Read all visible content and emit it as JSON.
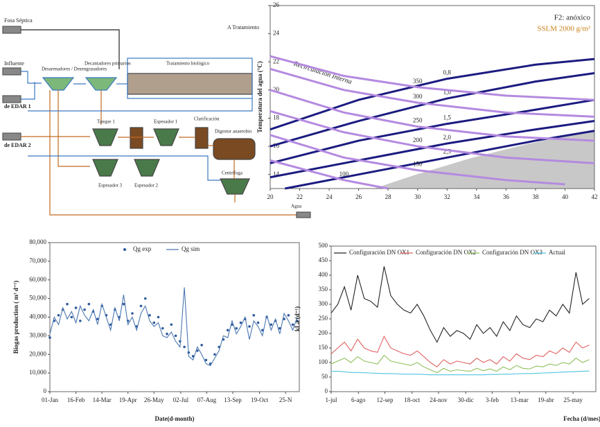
{
  "diagram": {
    "labels": [
      "Fosa Séptica",
      "A Tratamiento",
      "Influente",
      "de EDAR 1",
      "de EDAR 2",
      "Desarenadores / Desengrasadores",
      "Decantadores primarios",
      "Tratamiento biológico",
      "Clarificación",
      "Tanque 1",
      "Espesador 1",
      "Espesador 2",
      "Espesador 3",
      "Digestor anaerobio",
      "Centrífuga",
      "Agua"
    ]
  },
  "chart_data": [
    {
      "type": "contour",
      "title": "F2: anóxico",
      "subtitle": "SSLM 2000 g/m²",
      "y_label": "Temperatura del agua (°C)",
      "annotation": "Recirculación Interna",
      "xlim": [
        20,
        42
      ],
      "xticks": [
        20,
        22,
        24,
        26,
        28,
        30,
        32,
        34,
        36,
        38,
        40,
        42
      ],
      "ylim": [
        13,
        26
      ],
      "yticks": [
        14,
        16,
        18,
        20,
        22,
        24,
        26
      ],
      "series": [
        {
          "name": "0,8",
          "color": "#1b1b80",
          "x": [
            20,
            26,
            32,
            38,
            42
          ],
          "values": [
            17.2,
            19.3,
            20.8,
            21.8,
            22.2
          ]
        },
        {
          "name": "1,0",
          "color": "#1b1b80",
          "x": [
            20,
            26,
            32,
            38,
            42
          ],
          "values": [
            16,
            17.8,
            19.4,
            20.6,
            21.2
          ]
        },
        {
          "name": "1,5",
          "color": "#1b1b80",
          "x": [
            20,
            26,
            32,
            38,
            42
          ],
          "values": [
            14.8,
            16.4,
            17.6,
            18.6,
            19.3
          ]
        },
        {
          "name": "2,0",
          "color": "#1b1b80",
          "x": [
            20,
            26,
            32,
            38,
            42
          ],
          "values": [
            13.8,
            15,
            16.2,
            17.2,
            17.8
          ]
        },
        {
          "name": "2,5",
          "color": "#1b1b80",
          "x": [
            21,
            26,
            32,
            38,
            42
          ],
          "values": [
            13,
            14,
            15.2,
            16.4,
            17.1
          ]
        },
        {
          "name": "350",
          "color": "#b48ae0",
          "x": [
            20,
            25,
            30,
            36,
            42
          ],
          "values": [
            22.4,
            21,
            20.2,
            19.6,
            19.3
          ]
        },
        {
          "name": "300",
          "color": "#b48ae0",
          "x": [
            20,
            25,
            30,
            36,
            42
          ],
          "values": [
            21.5,
            20,
            19.1,
            18.4,
            18.1
          ]
        },
        {
          "name": "250",
          "color": "#b48ae0",
          "x": [
            20,
            25,
            30,
            36,
            42
          ],
          "values": [
            20,
            18.4,
            17.4,
            16.7,
            16.4
          ]
        },
        {
          "name": "200",
          "color": "#b48ae0",
          "x": [
            20,
            25,
            30,
            36,
            42
          ],
          "values": [
            18.5,
            17,
            16,
            15.2,
            14.8
          ]
        },
        {
          "name": "150",
          "color": "#b48ae0",
          "x": [
            20,
            25,
            30,
            36,
            40
          ],
          "values": [
            16.8,
            15.2,
            14.3,
            13.6,
            13.3
          ]
        },
        {
          "name": "100",
          "color": "#b48ae0",
          "x": [
            20,
            25,
            28
          ],
          "values": [
            15,
            13.6,
            13
          ]
        }
      ]
    },
    {
      "type": "line",
      "x_label": "Date(d-month)",
      "y_label": "Biogas production ( m³ d⁻¹)",
      "xlim": [
        0,
        345
      ],
      "xticks": [
        {
          "value": 0,
          "label": "01-Jan"
        },
        {
          "value": 36,
          "label": "16-Feb"
        },
        {
          "value": 72,
          "label": "14-Mar"
        },
        {
          "value": 108,
          "label": "19-Apr"
        },
        {
          "value": 144,
          "label": "26-May"
        },
        {
          "value": 181,
          "label": "02-Jul"
        },
        {
          "value": 217,
          "label": "07-Aug"
        },
        {
          "value": 253,
          "label": "13-Sep"
        },
        {
          "value": 290,
          "label": "19-Oct"
        },
        {
          "value": 326,
          "label": "25-N"
        }
      ],
      "ylim": [
        0,
        80000
      ],
      "yticks": [
        0,
        {
          "value": 10000,
          "label": "10,000"
        },
        {
          "value": 20000,
          "label": "20,000"
        },
        {
          "value": 30000,
          "label": "30,000"
        },
        {
          "value": 40000,
          "label": "40,000"
        },
        {
          "value": 50000,
          "label": "50,000"
        },
        {
          "value": 60000,
          "label": "60,000"
        },
        {
          "value": 70000,
          "label": "70,000"
        },
        {
          "value": 80000,
          "label": "80,000"
        }
      ],
      "x": [
        0,
        6,
        12,
        18,
        24,
        30,
        36,
        42,
        48,
        54,
        60,
        66,
        72,
        78,
        84,
        90,
        96,
        102,
        108,
        114,
        120,
        126,
        132,
        138,
        144,
        150,
        156,
        162,
        168,
        174,
        180,
        186,
        192,
        198,
        204,
        210,
        216,
        222,
        228,
        234,
        240,
        246,
        252,
        258,
        264,
        270,
        276,
        282,
        288,
        294,
        300,
        306,
        312,
        318,
        324,
        330,
        336,
        342
      ],
      "series": [
        {
          "name": "Qg exp",
          "color": "#2e5a9c",
          "mode": "markers",
          "values": [
            29000,
            38000,
            41000,
            44000,
            47000,
            40000,
            45000,
            38000,
            44000,
            47000,
            43000,
            39000,
            46000,
            41000,
            36000,
            44000,
            40000,
            47000,
            38000,
            42000,
            35000,
            46000,
            50000,
            41000,
            37000,
            40000,
            34000,
            31000,
            36000,
            30000,
            27000,
            24000,
            21000,
            19000,
            22000,
            25000,
            17000,
            15000,
            20000,
            24000,
            28000,
            33000,
            36000,
            34000,
            37000,
            39000,
            35000,
            41000,
            37000,
            33000,
            40000,
            36000,
            38000,
            34000,
            39000,
            41000,
            36000,
            38000
          ]
        },
        {
          "name": "Qg sim",
          "color": "#4a76b0",
          "mode": "line",
          "values": [
            31000,
            40000,
            36000,
            45000,
            39000,
            43000,
            37000,
            46000,
            41000,
            38000,
            44000,
            36000,
            47000,
            40000,
            33000,
            45000,
            38000,
            52000,
            36000,
            40000,
            33000,
            42000,
            46000,
            38000,
            35000,
            37000,
            30000,
            29000,
            32000,
            27000,
            24000,
            56000,
            19000,
            17000,
            24000,
            20000,
            15000,
            14000,
            18000,
            22000,
            30000,
            29000,
            38000,
            31000,
            35000,
            40000,
            28000,
            38000,
            35000,
            30000,
            41000,
            33000,
            39000,
            31000,
            42000,
            38000,
            33000,
            40000
          ]
        }
      ]
    },
    {
      "type": "line",
      "x_label": "Fecha (d/mes)",
      "y_label": "kLa (d⁻¹)",
      "xlim": [
        0,
        360
      ],
      "xticks": [
        {
          "value": 0,
          "label": "1-jul"
        },
        {
          "value": 37,
          "label": "6-ago"
        },
        {
          "value": 73,
          "label": "12-sep"
        },
        {
          "value": 110,
          "label": "18-oct"
        },
        {
          "value": 146,
          "label": "24-nov"
        },
        {
          "value": 183,
          "label": "30-dic"
        },
        {
          "value": 219,
          "label": "3-feb"
        },
        {
          "value": 256,
          "label": "13-mar"
        },
        {
          "value": 292,
          "label": "19-abr"
        },
        {
          "value": 329,
          "label": "25-may"
        }
      ],
      "ylim": [
        0,
        500
      ],
      "yticks": [
        0,
        50,
        100,
        150,
        200,
        250,
        300,
        350,
        400,
        450,
        500
      ],
      "x": [
        0,
        9,
        18,
        27,
        36,
        45,
        54,
        63,
        72,
        81,
        90,
        99,
        108,
        117,
        126,
        135,
        144,
        153,
        162,
        171,
        180,
        189,
        198,
        207,
        216,
        225,
        234,
        243,
        252,
        261,
        270,
        279,
        288,
        297,
        306,
        315,
        324,
        333,
        342,
        351
      ],
      "series": [
        {
          "name": "Configuración DN OX1",
          "color": "#222222",
          "mode": "line",
          "values": [
            270,
            300,
            360,
            280,
            400,
            320,
            310,
            290,
            430,
            330,
            300,
            280,
            270,
            300,
            260,
            210,
            170,
            220,
            190,
            210,
            200,
            180,
            230,
            200,
            220,
            190,
            240,
            210,
            260,
            230,
            220,
            250,
            240,
            280,
            260,
            300,
            270,
            410,
            300,
            320
          ]
        },
        {
          "name": "Configuración DN OX2",
          "color": "#e06060",
          "mode": "line",
          "values": [
            130,
            150,
            170,
            140,
            180,
            150,
            140,
            135,
            190,
            150,
            140,
            130,
            125,
            140,
            120,
            100,
            85,
            110,
            95,
            105,
            100,
            95,
            115,
            100,
            110,
            95,
            120,
            105,
            130,
            115,
            110,
            125,
            120,
            140,
            130,
            150,
            135,
            170,
            150,
            160
          ]
        },
        {
          "name": "Configuración DN OX3",
          "color": "#8fbf5a",
          "mode": "line",
          "values": [
            95,
            105,
            115,
            100,
            120,
            105,
            100,
            95,
            125,
            105,
            100,
            95,
            90,
            100,
            85,
            75,
            65,
            80,
            70,
            75,
            72,
            70,
            80,
            72,
            78,
            70,
            85,
            75,
            90,
            80,
            78,
            88,
            85,
            95,
            90,
            100,
            95,
            115,
            100,
            110
          ]
        },
        {
          "name": "Actual",
          "color": "#4fc3e0",
          "mode": "line",
          "values": [
            70,
            70,
            68,
            66,
            66,
            65,
            64,
            63,
            62,
            62,
            61,
            60,
            60,
            60,
            59,
            58,
            58,
            58,
            58,
            58,
            58,
            58,
            58,
            58,
            59,
            59,
            60,
            60,
            61,
            62,
            62,
            63,
            64,
            65,
            66,
            67,
            68,
            69,
            70,
            71
          ]
        }
      ]
    }
  ]
}
